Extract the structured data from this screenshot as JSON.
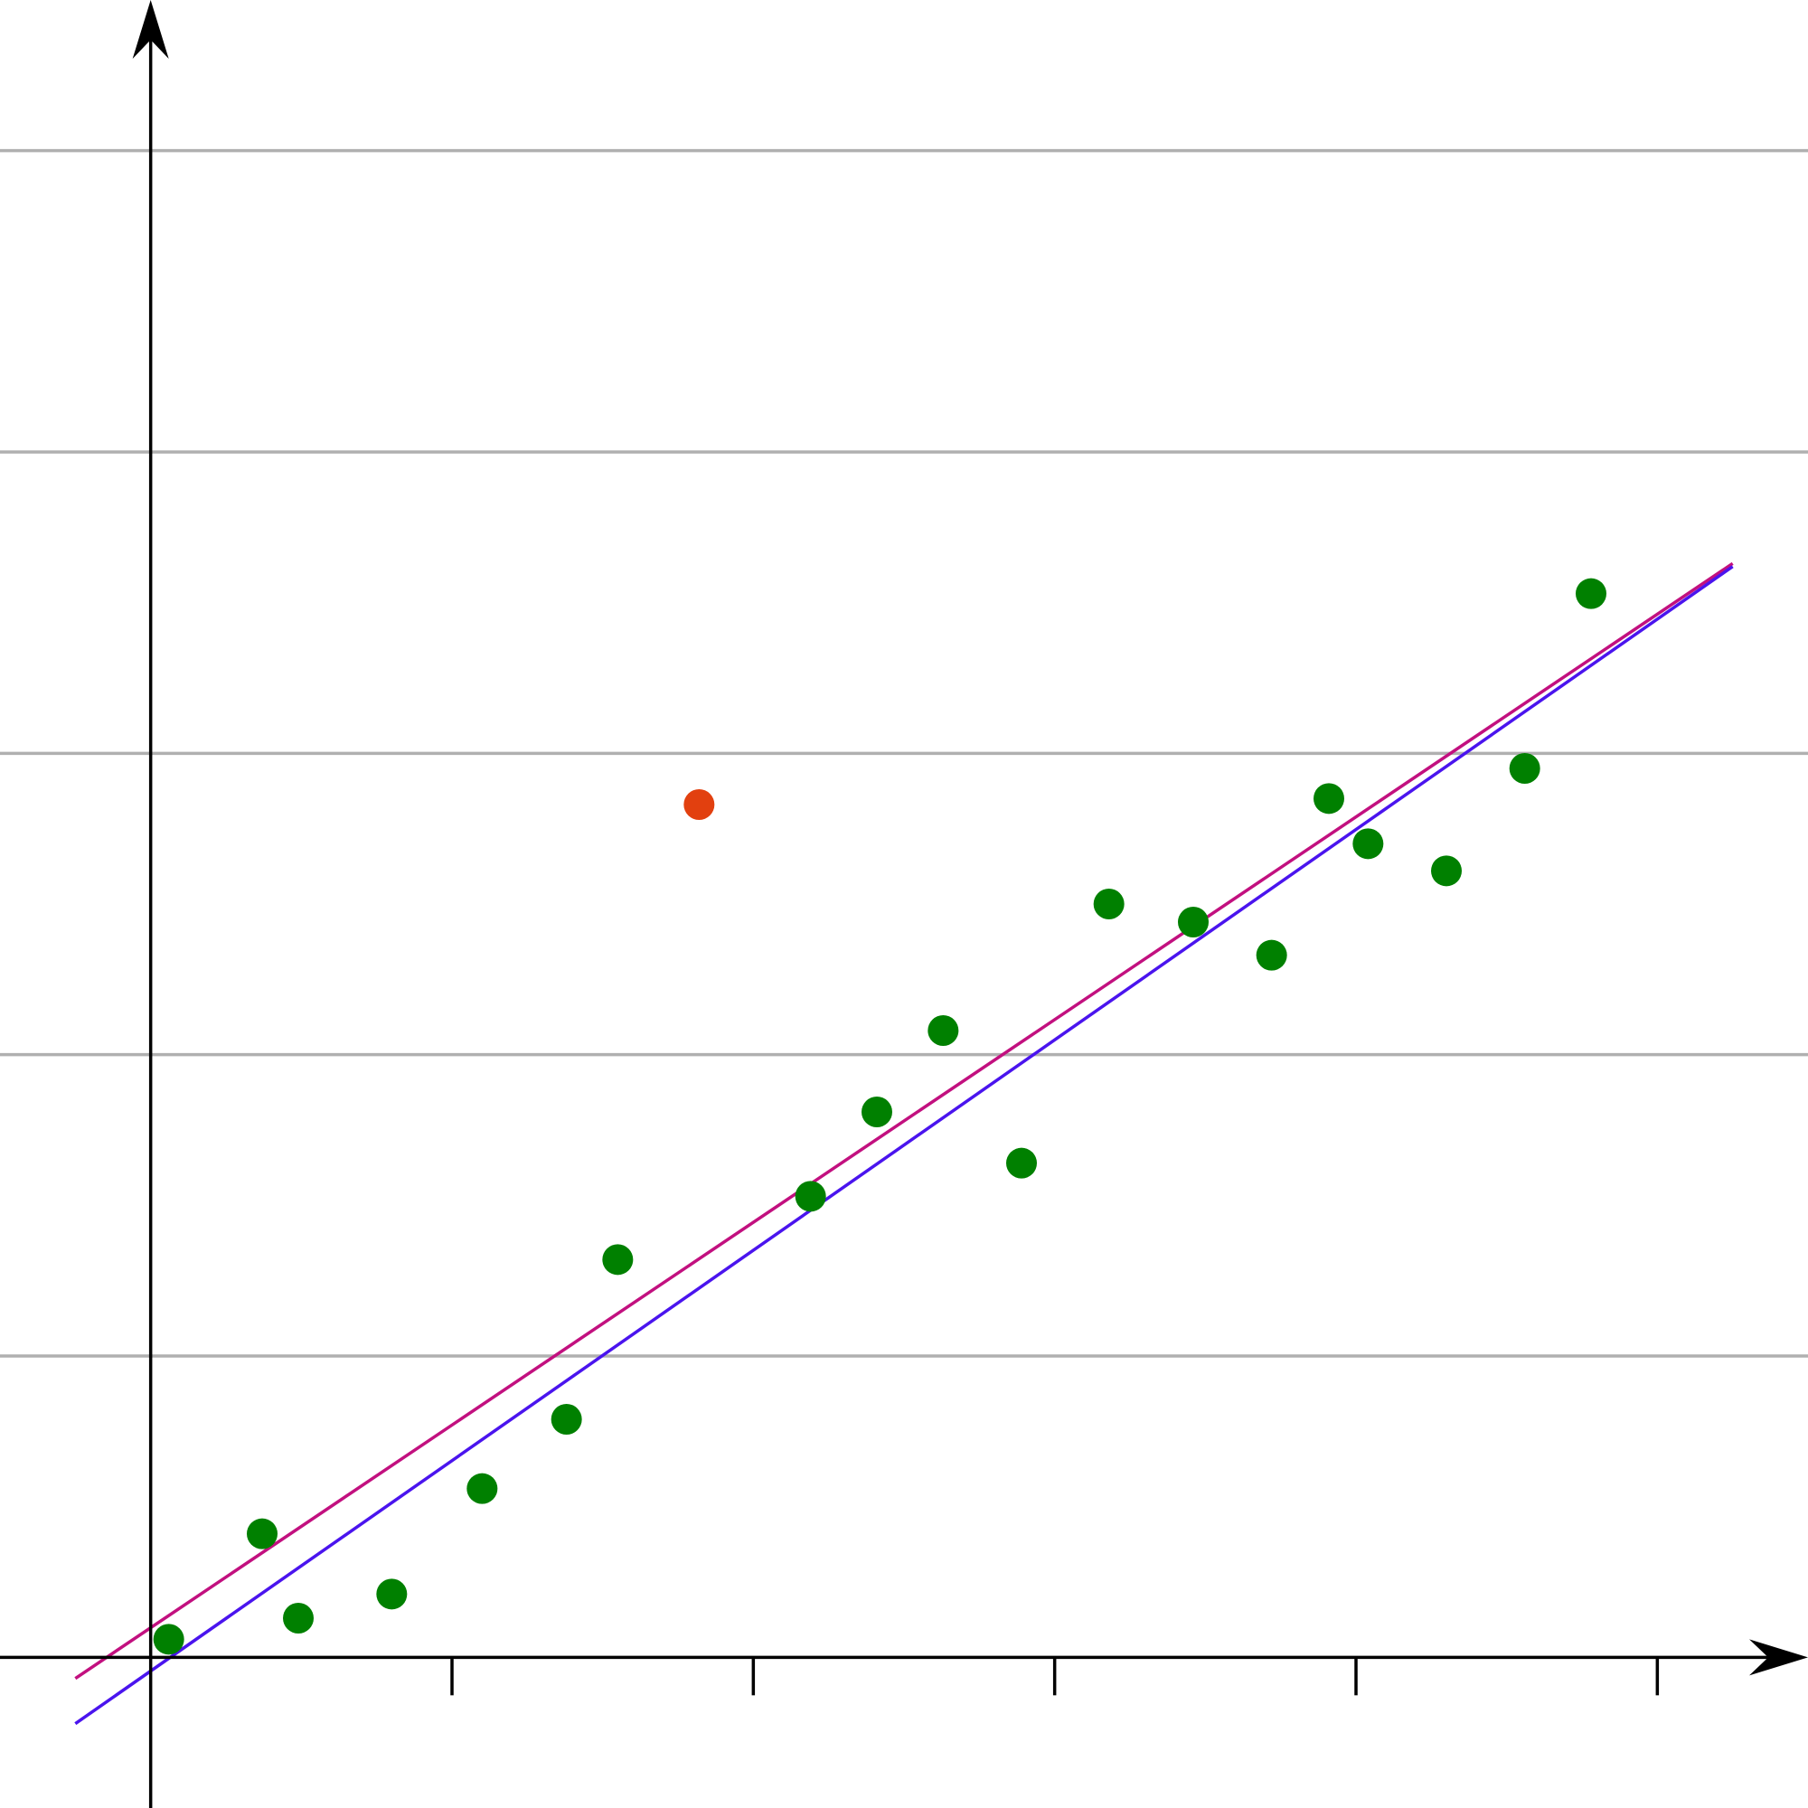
{
  "chart_data": {
    "type": "scatter",
    "title": "",
    "xlabel": "",
    "ylabel": "",
    "xlim": [
      -0.5,
      5.5
    ],
    "ylim": [
      -0.5,
      5.5
    ],
    "x_ticks": [
      1,
      2,
      3,
      4,
      5
    ],
    "y_gridlines": [
      1,
      2,
      3,
      4,
      5
    ],
    "grid": "horizontal",
    "legend": "none",
    "colors": {
      "points": "#008000",
      "outlier": "#e2400f",
      "fit_with_outlier": "#c2107f",
      "fit_without_outlier": "#4a14ee",
      "grid": "#b0b0b0",
      "axes": "#000000"
    },
    "series": [
      {
        "values": [
          [
            0.06,
            0.06
          ],
          [
            0.37,
            0.41
          ],
          [
            0.49,
            0.13
          ],
          [
            0.8,
            0.21
          ],
          [
            1.1,
            0.56
          ],
          [
            1.38,
            0.79
          ],
          [
            1.55,
            1.32
          ],
          [
            2.19,
            1.53
          ],
          [
            2.41,
            1.81
          ],
          [
            2.63,
            2.08
          ],
          [
            2.89,
            1.64
          ],
          [
            3.18,
            2.5
          ],
          [
            3.46,
            2.44
          ],
          [
            3.72,
            2.33
          ],
          [
            3.91,
            2.85
          ],
          [
            4.04,
            2.7
          ],
          [
            4.3,
            2.61
          ],
          [
            4.56,
            2.95
          ],
          [
            4.78,
            3.53
          ]
        ]
      },
      {
        "values": [
          [
            1.82,
            2.83
          ]
        ]
      }
    ],
    "lines": [
      {
        "from": [
          -0.25,
          -0.07
        ],
        "to": [
          5.25,
          3.63
        ]
      },
      {
        "from": [
          -0.25,
          -0.22
        ],
        "to": [
          5.25,
          3.62
        ]
      }
    ]
  }
}
